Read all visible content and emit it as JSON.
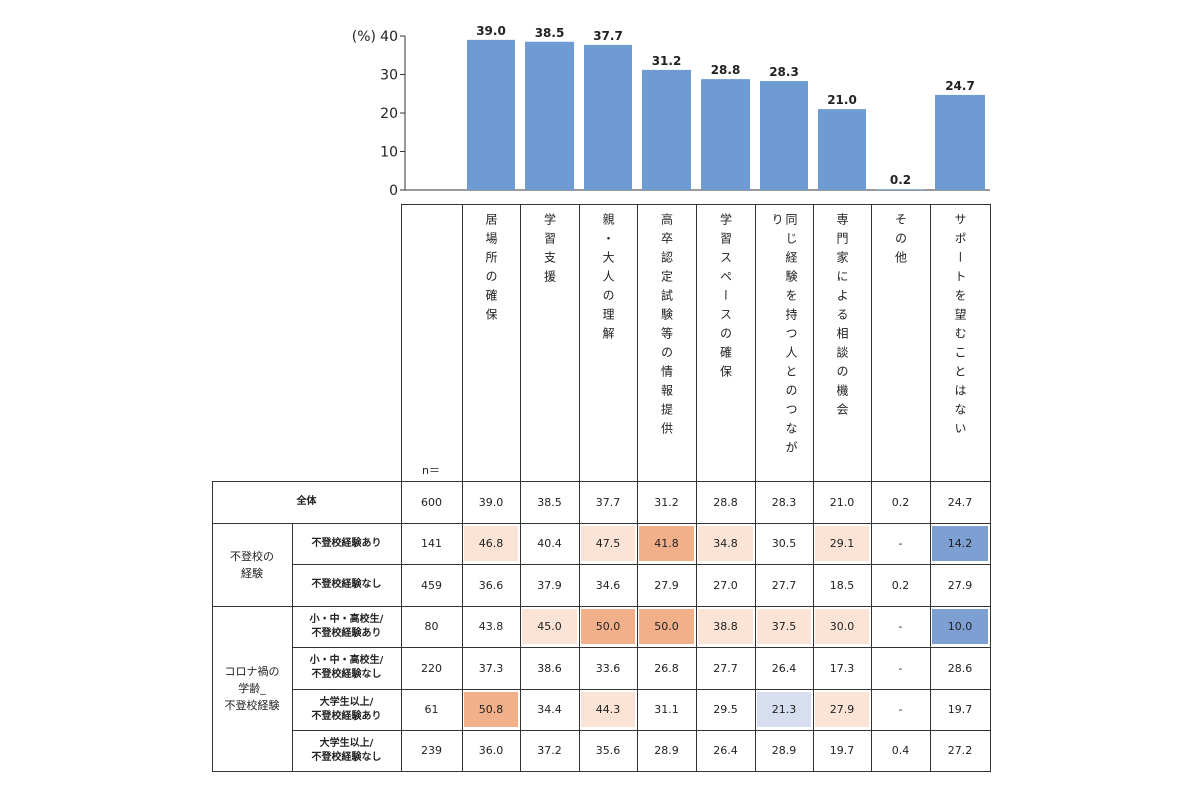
{
  "chart_data": {
    "type": "bar",
    "unit_label": "(%)",
    "ylim": [
      0,
      40
    ],
    "yticks": [
      0,
      10,
      20,
      30,
      40
    ],
    "categories": [
      "居場所の確保",
      "学習支援",
      "親・大人の理解",
      "高卒認定試験等の情報提供",
      "学習スペースの確保",
      "同じ経験を持つ人とのつながり",
      "専門家による相談の機会",
      "その他",
      "サポートを望むことはない"
    ],
    "values": [
      39.0,
      38.5,
      37.7,
      31.2,
      28.8,
      28.3,
      21.0,
      0.2,
      24.7
    ],
    "value_labels": [
      "39.0",
      "38.5",
      "37.7",
      "31.2",
      "28.8",
      "28.3",
      "21.0",
      "0.2",
      "24.7"
    ],
    "bar_color": "#6d9bd2"
  },
  "table": {
    "n_header": "n＝",
    "groups": [
      {
        "label": "",
        "rows": [
          0
        ]
      },
      {
        "label": "不登校の\n経験",
        "rows": [
          1,
          2
        ]
      },
      {
        "label": "コロナ禍の\n学齢_\n不登校経験",
        "rows": [
          3,
          4,
          5,
          6
        ]
      }
    ],
    "rows": [
      {
        "label": "全体",
        "n": "600",
        "values": [
          "39.0",
          "38.5",
          "37.7",
          "31.2",
          "28.8",
          "28.3",
          "21.0",
          "0.2",
          "24.7"
        ],
        "highlights": [
          "",
          "",
          "",
          "",
          "",
          "",
          "",
          "",
          ""
        ]
      },
      {
        "label": "不登校経験あり",
        "n": "141",
        "values": [
          "46.8",
          "40.4",
          "47.5",
          "41.8",
          "34.8",
          "30.5",
          "29.1",
          "-",
          "14.2"
        ],
        "highlights": [
          "light",
          "",
          "light",
          "strong",
          "light",
          "",
          "light",
          "",
          "blue"
        ]
      },
      {
        "label": "不登校経験なし",
        "n": "459",
        "values": [
          "36.6",
          "37.9",
          "34.6",
          "27.9",
          "27.0",
          "27.7",
          "18.5",
          "0.2",
          "27.9"
        ],
        "highlights": [
          "",
          "",
          "",
          "",
          "",
          "",
          "",
          "",
          ""
        ]
      },
      {
        "label": "小・中・高校生/\n不登校経験あり",
        "n": "80",
        "values": [
          "43.8",
          "45.0",
          "50.0",
          "50.0",
          "38.8",
          "37.5",
          "30.0",
          "-",
          "10.0"
        ],
        "highlights": [
          "",
          "light",
          "strong",
          "strong",
          "light",
          "light",
          "light",
          "",
          "blue"
        ]
      },
      {
        "label": "小・中・高校生/\n不登校経験なし",
        "n": "220",
        "values": [
          "37.3",
          "38.6",
          "33.6",
          "26.8",
          "27.7",
          "26.4",
          "17.3",
          "-",
          "28.6"
        ],
        "highlights": [
          "",
          "",
          "",
          "",
          "",
          "",
          "",
          "",
          ""
        ]
      },
      {
        "label": "大学生以上/\n不登校経験あり",
        "n": "61",
        "values": [
          "50.8",
          "34.4",
          "44.3",
          "31.1",
          "29.5",
          "21.3",
          "27.9",
          "-",
          "19.7"
        ],
        "highlights": [
          "strong",
          "",
          "light",
          "",
          "",
          "lightblue",
          "light",
          "",
          ""
        ]
      },
      {
        "label": "大学生以上/\n不登校経験なし",
        "n": "239",
        "values": [
          "36.0",
          "37.2",
          "35.6",
          "28.9",
          "26.4",
          "28.9",
          "19.7",
          "0.4",
          "27.2"
        ],
        "highlights": [
          "",
          "",
          "",
          "",
          "",
          "",
          "",
          "",
          ""
        ]
      }
    ],
    "highlight_colors": {
      "light": "#fbe3d6",
      "strong": "#f2b08a",
      "blue": "#7d9fd1",
      "lightblue": "#d6deef"
    }
  }
}
